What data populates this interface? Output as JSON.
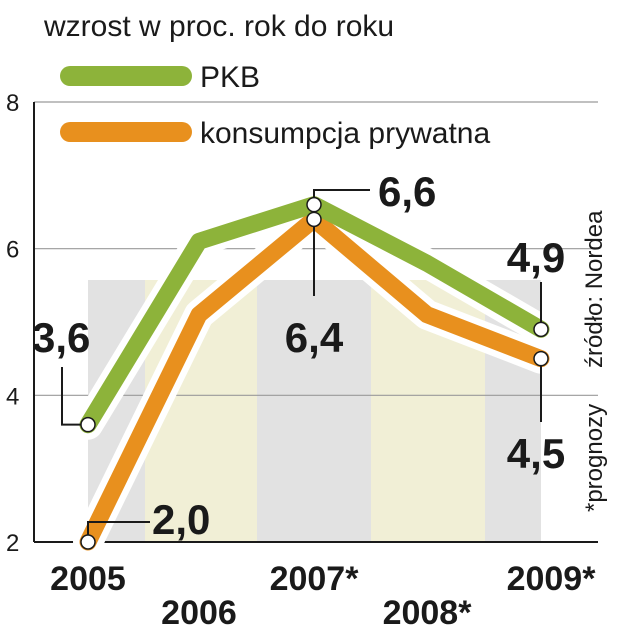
{
  "chart_data": {
    "type": "line",
    "title": "wzrost w proc. rok do roku",
    "categories": [
      "2005",
      "2006",
      "2007*",
      "2008*",
      "2009*"
    ],
    "ylim": [
      2,
      8
    ],
    "yticks": [
      "2",
      "4",
      "6",
      "8"
    ],
    "grid": true,
    "legend_position": "top-left",
    "series": [
      {
        "name": "PKB",
        "color": "#8db33a",
        "values": [
          3.6,
          6.1,
          6.6,
          5.8,
          4.9
        ]
      },
      {
        "name": "konsumpcja prywatna",
        "color": "#e8901e",
        "values": [
          2.0,
          5.1,
          6.4,
          5.1,
          4.5
        ]
      }
    ],
    "data_labels": [
      {
        "series": 0,
        "index": 0,
        "text": "3,6"
      },
      {
        "series": 1,
        "index": 0,
        "text": "2,0"
      },
      {
        "series": 0,
        "index": 2,
        "text": "6,6"
      },
      {
        "series": 1,
        "index": 2,
        "text": "6,4"
      },
      {
        "series": 0,
        "index": 4,
        "text": "4,9"
      },
      {
        "series": 1,
        "index": 4,
        "text": "4,5"
      }
    ],
    "source": "źródło: Nordea",
    "footnote": "*prognozy",
    "colors": {
      "band_light": "#f1efd6",
      "band_grey": "#e2e2e2",
      "grid": "#9a9a9a",
      "marker_fill": "#ffffff"
    }
  }
}
